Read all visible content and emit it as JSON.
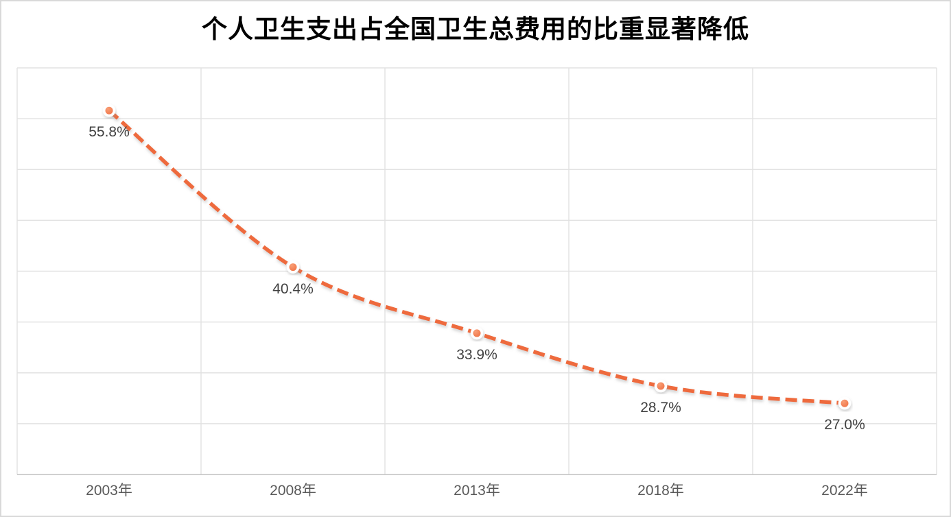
{
  "title": "个人卫生支出占全国卫生总费用的比重显著降低",
  "chart_data": {
    "type": "line",
    "line_style": "dashed-smooth",
    "title": "个人卫生支出占全国卫生总费用的比重显著降低",
    "categories": [
      "2003年",
      "2008年",
      "2013年",
      "2018年",
      "2022年"
    ],
    "values": [
      55.8,
      40.4,
      33.9,
      28.7,
      27.0
    ],
    "data_labels": [
      "55.8%",
      "40.4%",
      "33.9%",
      "28.7%",
      "27.0%"
    ],
    "xlabel": "",
    "ylabel": "",
    "ylim": [
      20,
      60
    ],
    "gridline_step": 5,
    "grid": true,
    "legend": "none",
    "colors": {
      "line": "#EE6A3C",
      "marker_fill_dark": "#ED5F2F",
      "marker_fill_light": "#F89E76",
      "marker_ring": "#FFFFFF",
      "shadow": "#9a9a9a",
      "gridline": "#E2E2E2",
      "axis_line": "#C0C0C0",
      "tick_label": "#595959",
      "data_label": "#404040",
      "title": "#000000",
      "border": "#D9D9D9",
      "background": "#FFFFFF"
    }
  }
}
